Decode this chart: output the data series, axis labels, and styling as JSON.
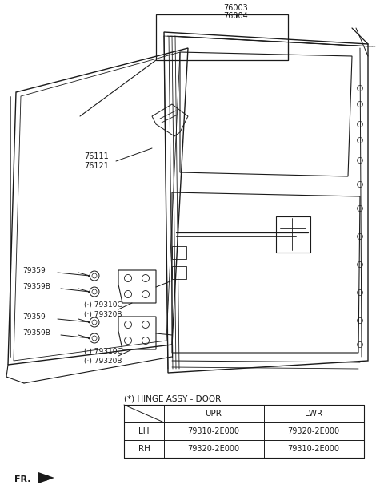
{
  "background_color": "#ffffff",
  "line_color": "#1a1a1a",
  "text_color": "#1a1a1a",
  "table": {
    "title": "(*) HINGE ASSY - DOOR",
    "headers": [
      "",
      "UPR",
      "LWR"
    ],
    "rows": [
      [
        "LH",
        "79310-2E000",
        "79320-2E000"
      ],
      [
        "RH",
        "79320-2E000",
        "79310-2E000"
      ]
    ]
  },
  "labels": {
    "top1": "76003",
    "top2": "76004",
    "left1": "76111",
    "left2": "76121",
    "uh1": "79359",
    "uh2": "79359B",
    "uh3": "(·) 79310C",
    "uh4": "(·) 79320B",
    "lh1": "79359",
    "lh2": "79359B",
    "lh3": "(·) 79310C",
    "lh4": "(·) 79320B",
    "fr": "FR."
  }
}
